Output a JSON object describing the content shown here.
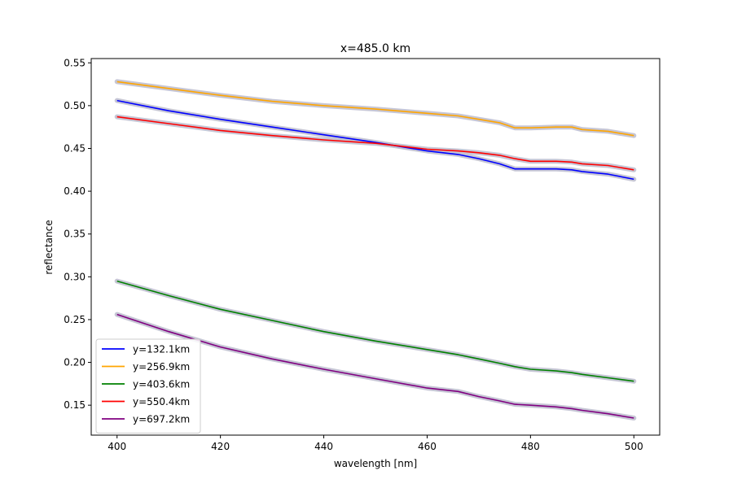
{
  "chart_data": {
    "type": "line",
    "title": "x=485.0 km",
    "xlabel": "wavelength [nm]",
    "ylabel": "reflectance",
    "xlim": [
      395,
      505
    ],
    "ylim": [
      0.115,
      0.555
    ],
    "xticks": [
      400,
      420,
      440,
      460,
      480,
      500
    ],
    "yticks": [
      0.15,
      0.2,
      0.25,
      0.3,
      0.35,
      0.4,
      0.45,
      0.5,
      0.55
    ],
    "grid": false,
    "legend_position": "lower-left",
    "band_color": "#c0c0d0",
    "x": [
      400,
      410,
      420,
      430,
      440,
      450,
      460,
      466,
      470,
      474,
      477,
      480,
      485,
      488,
      490,
      495,
      500
    ],
    "series": [
      {
        "name": "y=132.1km",
        "color": "#0000ff",
        "values": [
          0.506,
          0.494,
          0.484,
          0.475,
          0.466,
          0.457,
          0.447,
          0.443,
          0.438,
          0.432,
          0.426,
          0.426,
          0.426,
          0.425,
          0.423,
          0.42,
          0.414
        ]
      },
      {
        "name": "y=256.9km",
        "color": "#ffa500",
        "values": [
          0.528,
          0.52,
          0.512,
          0.505,
          0.5,
          0.496,
          0.491,
          0.488,
          0.484,
          0.48,
          0.474,
          0.474,
          0.475,
          0.475,
          0.472,
          0.47,
          0.465
        ]
      },
      {
        "name": "y=403.6km",
        "color": "#008000",
        "values": [
          0.295,
          0.278,
          0.262,
          0.249,
          0.236,
          0.225,
          0.215,
          0.209,
          0.204,
          0.199,
          0.195,
          0.192,
          0.19,
          0.188,
          0.186,
          0.182,
          0.178
        ]
      },
      {
        "name": "y=550.4km",
        "color": "#ff0000",
        "values": [
          0.487,
          0.479,
          0.471,
          0.465,
          0.46,
          0.456,
          0.449,
          0.447,
          0.445,
          0.442,
          0.438,
          0.435,
          0.435,
          0.434,
          0.432,
          0.43,
          0.425
        ]
      },
      {
        "name": "y=697.2km",
        "color": "#800080",
        "values": [
          0.256,
          0.236,
          0.218,
          0.204,
          0.192,
          0.181,
          0.17,
          0.166,
          0.16,
          0.155,
          0.151,
          0.15,
          0.148,
          0.146,
          0.144,
          0.14,
          0.135
        ]
      }
    ]
  }
}
